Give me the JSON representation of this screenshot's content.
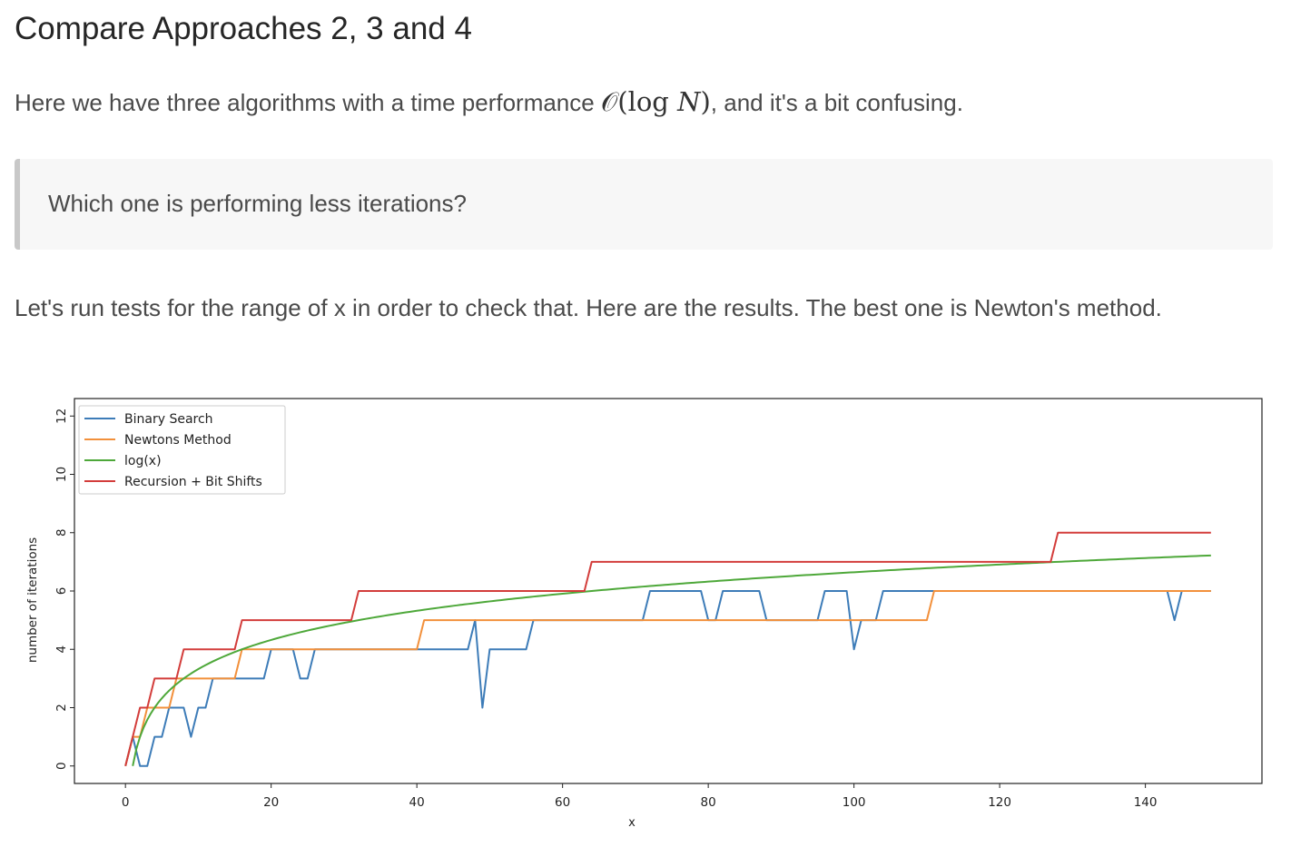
{
  "title": "Compare Approaches 2, 3 and 4",
  "intro": {
    "before": "Here we have three algorithms with a time performance ",
    "math_O": "𝒪",
    "math_open": "(",
    "math_log": "log",
    "math_N": "N",
    "math_close": ")",
    "after": ", and it's a bit confusing."
  },
  "callout": "Which one is performing less iterations?",
  "paragraph": "Let's run tests for the range of x in order to check that. Here are the results. The best one is Newton's method.",
  "chart_data": {
    "type": "line",
    "title": "",
    "xlabel": "x",
    "ylabel": "number of iterations",
    "xlim": [
      -7,
      156
    ],
    "ylim": [
      -0.6,
      12.6
    ],
    "xticks": [
      0,
      20,
      40,
      60,
      80,
      100,
      120,
      140
    ],
    "yticks": [
      0,
      2,
      4,
      6,
      8,
      10,
      12
    ],
    "legend_position": "top-left",
    "series": [
      {
        "name": "Binary Search",
        "color": "#3d7cb8",
        "kind": "binary_search",
        "x_range": [
          0,
          149
        ]
      },
      {
        "name": "Newtons Method",
        "color": "#f2903b",
        "kind": "newton",
        "x_range": [
          0,
          149
        ]
      },
      {
        "name": "log(x)",
        "color": "#4ea83a",
        "kind": "log2",
        "x_range": [
          1,
          149
        ]
      },
      {
        "name": "Recursion + Bit Shifts",
        "color": "#d33d3b",
        "kind": "bit_shifts",
        "x_range": [
          0,
          149
        ]
      }
    ]
  }
}
